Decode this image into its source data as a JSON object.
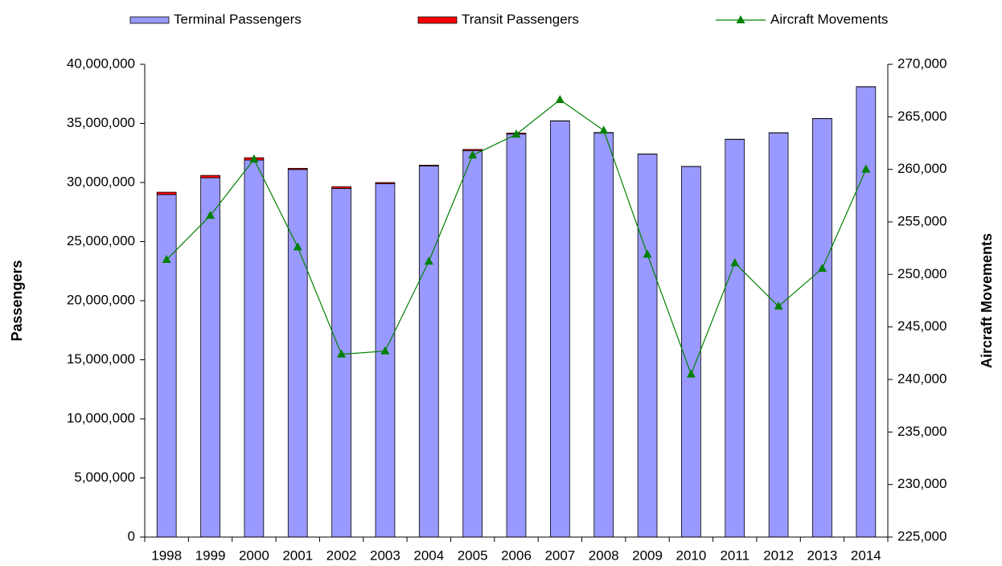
{
  "chart_data": {
    "type": "bar",
    "categories": [
      "1998",
      "1999",
      "2000",
      "2001",
      "2002",
      "2003",
      "2004",
      "2005",
      "2006",
      "2007",
      "2008",
      "2009",
      "2010",
      "2011",
      "2012",
      "2013",
      "2014"
    ],
    "series": [
      {
        "name": "Terminal Passengers",
        "color": "#9999ff",
        "values": [
          28980000,
          30400000,
          31900000,
          31100000,
          29500000,
          29900000,
          31400000,
          32700000,
          34100000,
          35200000,
          34200000,
          32400000,
          31350000,
          33650000,
          34200000,
          35400000,
          38100000
        ]
      },
      {
        "name": "Transit Passengers",
        "color": "#ff0000",
        "values": [
          200000,
          200000,
          200000,
          100000,
          150000,
          100000,
          70000,
          100000,
          80000,
          20000,
          30000,
          10000,
          10000,
          10000,
          10000,
          10000,
          10000
        ]
      },
      {
        "name": "Aircraft Movements",
        "color": "#008000",
        "type": "line",
        "axis": "y2",
        "values": [
          251400,
          255600,
          260960,
          252600,
          242400,
          242700,
          251240,
          261340,
          263330,
          266620,
          263710,
          251900,
          240500,
          251090,
          246960,
          250560,
          260000
        ]
      }
    ],
    "y_label": "Passengers",
    "y2_label": "Aircraft Movements",
    "ylim": [
      0,
      40000000
    ],
    "yticks": [
      0,
      {
        "value": 5000000,
        "label": "5,000,000"
      },
      {
        "value": 10000000,
        "label": "10,000,000"
      },
      {
        "value": 15000000,
        "label": "15,000,000"
      },
      {
        "value": 20000000,
        "label": "20,000,000"
      },
      {
        "value": 25000000,
        "label": "25,000,000"
      },
      {
        "value": 30000000,
        "label": "30,000,000"
      },
      {
        "value": 35000000,
        "label": "35,000,000"
      },
      {
        "value": 40000000,
        "label": "40,000,000"
      }
    ],
    "y2lim": [
      225000,
      270000
    ],
    "y2ticks": [
      {
        "value": 225000,
        "label": "225,000"
      },
      {
        "value": 230000,
        "label": "230,000"
      },
      {
        "value": 235000,
        "label": "235,000"
      },
      {
        "value": 240000,
        "label": "240,000"
      },
      {
        "value": 245000,
        "label": "245,000"
      },
      {
        "value": 250000,
        "label": "250,000"
      },
      {
        "value": 255000,
        "label": "255,000"
      },
      {
        "value": 260000,
        "label": "260,000"
      },
      {
        "value": 265000,
        "label": "265,000"
      },
      {
        "value": 270000,
        "label": "270,000"
      }
    ],
    "grid": false,
    "legend": "top"
  }
}
